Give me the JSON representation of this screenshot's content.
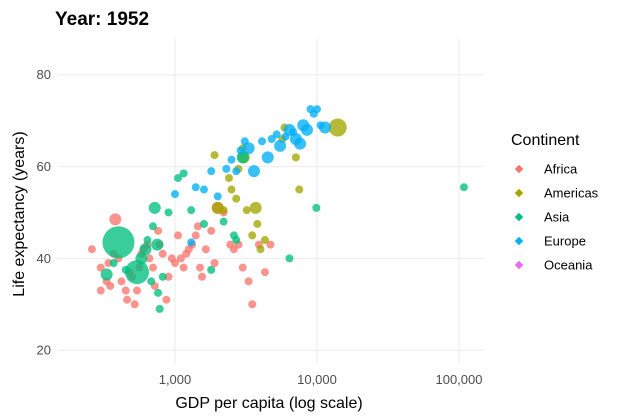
{
  "chart_data": {
    "type": "scatter",
    "title": "Year: 1952",
    "xlabel": "GDP per capita (log scale)",
    "ylabel": "Life expectancy (years)",
    "x_scale": "log",
    "xlim": [
      150,
      150000
    ],
    "ylim": [
      17,
      88
    ],
    "x_ticks": [
      1000,
      10000,
      100000
    ],
    "x_tick_labels": [
      "1,000",
      "10,000",
      "100,000"
    ],
    "y_ticks": [
      20,
      40,
      60,
      80
    ],
    "y_tick_labels": [
      "20",
      "40",
      "60",
      "80"
    ],
    "grid": true,
    "legend": {
      "title": "Continent",
      "placement": "right"
    },
    "series": [
      {
        "name": "Africa",
        "color": "#F8766D",
        "points": [
          [
            380,
            48.5,
            2
          ],
          [
            260,
            42,
            1
          ],
          [
            300,
            38,
            1
          ],
          [
            300,
            33,
            1
          ],
          [
            330,
            35,
            1
          ],
          [
            340,
            39,
            1
          ],
          [
            350,
            34,
            1
          ],
          [
            370,
            41,
            1
          ],
          [
            400,
            40,
            1
          ],
          [
            420,
            35,
            1
          ],
          [
            450,
            33,
            1
          ],
          [
            460,
            31,
            1
          ],
          [
            480,
            37,
            1
          ],
          [
            500,
            36,
            1
          ],
          [
            520,
            30,
            1
          ],
          [
            540,
            33,
            1
          ],
          [
            560,
            38,
            1
          ],
          [
            580,
            41,
            1
          ],
          [
            600,
            42,
            1
          ],
          [
            640,
            43,
            1
          ],
          [
            660,
            40,
            1
          ],
          [
            700,
            38,
            1
          ],
          [
            720,
            34,
            1
          ],
          [
            760,
            46,
            1
          ],
          [
            780,
            43,
            1
          ],
          [
            820,
            41,
            1
          ],
          [
            870,
            31,
            1
          ],
          [
            900,
            36,
            1
          ],
          [
            950,
            40,
            1
          ],
          [
            1000,
            39,
            1
          ],
          [
            1050,
            45,
            1
          ],
          [
            1100,
            40,
            1
          ],
          [
            1150,
            38,
            1
          ],
          [
            1200,
            41,
            1
          ],
          [
            1250,
            42,
            1
          ],
          [
            1320,
            43,
            1
          ],
          [
            1400,
            45,
            1
          ],
          [
            1450,
            47,
            1
          ],
          [
            1500,
            38,
            1
          ],
          [
            1550,
            36,
            1
          ],
          [
            1650,
            42,
            1
          ],
          [
            1800,
            46,
            1
          ],
          [
            1900,
            39,
            1
          ],
          [
            2000,
            51,
            2
          ],
          [
            2200,
            50,
            1
          ],
          [
            2450,
            43,
            1
          ],
          [
            2600,
            42,
            1
          ],
          [
            2800,
            43,
            1
          ],
          [
            3000,
            38,
            1
          ],
          [
            3300,
            35,
            1
          ],
          [
            3500,
            30,
            1
          ],
          [
            3900,
            43,
            1
          ],
          [
            4300,
            37,
            1
          ],
          [
            4700,
            43,
            1
          ]
        ]
      },
      {
        "name": "Americas",
        "color": "#A3A500",
        "points": [
          [
            1900,
            62.5,
            1
          ],
          [
            2000,
            51,
            2
          ],
          [
            2200,
            50.5,
            1
          ],
          [
            2400,
            57.5,
            1
          ],
          [
            2500,
            55,
            1
          ],
          [
            2700,
            53,
            1
          ],
          [
            2800,
            59.5,
            1
          ],
          [
            3000,
            64,
            1
          ],
          [
            3050,
            62,
            2
          ],
          [
            3200,
            50.5,
            1
          ],
          [
            3500,
            45,
            1
          ],
          [
            3700,
            51,
            2
          ],
          [
            3800,
            47.5,
            1
          ],
          [
            4000,
            42,
            1
          ],
          [
            4300,
            44,
            1
          ],
          [
            5700,
            66,
            1
          ],
          [
            5900,
            68.5,
            1
          ],
          [
            7100,
            62,
            1
          ],
          [
            7500,
            55,
            1
          ],
          [
            13990,
            68.5,
            4
          ]
        ]
      },
      {
        "name": "Asia",
        "color": "#00BF7D",
        "points": [
          [
            400,
            43.5,
            6
          ],
          [
            330,
            36.5,
            2
          ],
          [
            370,
            39,
            1
          ],
          [
            450,
            37.5,
            1
          ],
          [
            540,
            37,
            5
          ],
          [
            580,
            40,
            2
          ],
          [
            620,
            42,
            2
          ],
          [
            640,
            44,
            1
          ],
          [
            680,
            35,
            1
          ],
          [
            700,
            47,
            1
          ],
          [
            720,
            51,
            2
          ],
          [
            750,
            43,
            2
          ],
          [
            760,
            32.5,
            1
          ],
          [
            780,
            29,
            1
          ],
          [
            820,
            36,
            1
          ],
          [
            900,
            50,
            1
          ],
          [
            1050,
            57.5,
            1
          ],
          [
            1150,
            58.5,
            1
          ],
          [
            1300,
            50.5,
            1
          ],
          [
            1600,
            47.5,
            1
          ],
          [
            1800,
            37.5,
            1
          ],
          [
            2200,
            48,
            1
          ],
          [
            2600,
            45,
            1
          ],
          [
            2700,
            44,
            1
          ],
          [
            3000,
            62,
            2
          ],
          [
            6400,
            40,
            1
          ],
          [
            9900,
            51,
            1
          ],
          [
            108382,
            55.5,
            1
          ]
        ]
      },
      {
        "name": "Europe",
        "color": "#00B0F6",
        "points": [
          [
            1000,
            54,
            1
          ],
          [
            1300,
            43.5,
            1
          ],
          [
            1400,
            55.5,
            1
          ],
          [
            1600,
            55,
            1
          ],
          [
            1800,
            59,
            1
          ],
          [
            2000,
            53.5,
            1
          ],
          [
            2300,
            59.5,
            1
          ],
          [
            2500,
            61.5,
            1
          ],
          [
            2700,
            59,
            1
          ],
          [
            2900,
            63.5,
            1
          ],
          [
            3100,
            65.5,
            1
          ],
          [
            3300,
            64,
            2
          ],
          [
            3600,
            59,
            2
          ],
          [
            4100,
            65.5,
            1
          ],
          [
            4500,
            62,
            2
          ],
          [
            4800,
            66,
            1
          ],
          [
            5200,
            67,
            1
          ],
          [
            5500,
            64.5,
            2
          ],
          [
            6000,
            66.5,
            1
          ],
          [
            6400,
            68,
            2
          ],
          [
            6800,
            67.5,
            1
          ],
          [
            7100,
            66,
            2
          ],
          [
            7600,
            65,
            2
          ],
          [
            8000,
            69,
            2
          ],
          [
            8500,
            68,
            2
          ],
          [
            9000,
            72.5,
            1
          ],
          [
            9500,
            71.5,
            1
          ],
          [
            10000,
            72.5,
            1
          ],
          [
            10600,
            69,
            1
          ],
          [
            11400,
            68.5,
            2
          ]
        ]
      },
      {
        "name": "Oceania",
        "color": "#E76BF3",
        "points": []
      }
    ]
  }
}
